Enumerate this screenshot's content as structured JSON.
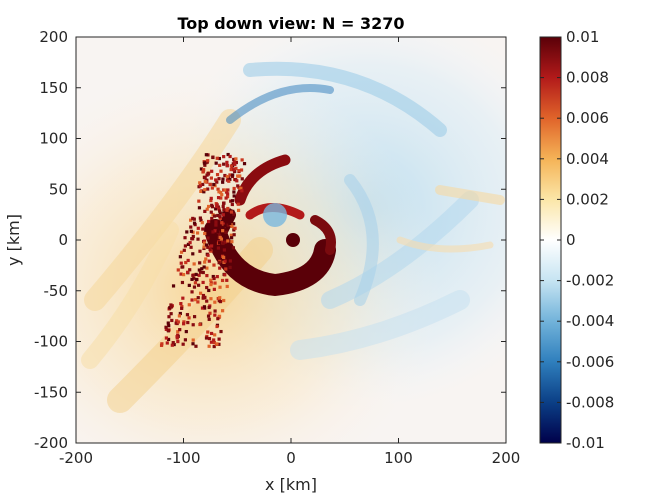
{
  "chart_data": {
    "type": "heatmap",
    "title": "Top down view: N = 3270",
    "xlabel": "x [km]",
    "ylabel": "y [km]",
    "xlim": [
      -200,
      200
    ],
    "ylim": [
      -200,
      200
    ],
    "xticks": [
      -200,
      -100,
      0,
      100,
      200
    ],
    "xtick_labels": [
      "-200",
      "-100",
      "0",
      "100",
      "200"
    ],
    "yticks": [
      -200,
      -150,
      -100,
      -50,
      0,
      50,
      100,
      150,
      200
    ],
    "ytick_labels": [
      "-200",
      "-150",
      "-100",
      "-50",
      "0",
      "50",
      "100",
      "150",
      "200"
    ],
    "colorbar": {
      "range": [
        -0.01,
        0.01
      ],
      "ticks": [
        -0.01,
        -0.008,
        -0.006,
        -0.004,
        -0.002,
        0,
        0.002,
        0.004,
        0.006,
        0.008,
        0.01
      ],
      "tick_labels": [
        "-0.01",
        "-0.008",
        "-0.006",
        "-0.004",
        "-0.002",
        "0",
        "0.002",
        "0.004",
        "0.006",
        "0.008",
        "0.01"
      ],
      "colormap": [
        "#00004a",
        "#0b3f86",
        "#2f7fbd",
        "#72b3da",
        "#c6e4f2",
        "#ffffff",
        "#fbe6a8",
        "#f5b357",
        "#e0642a",
        "#b21a1a",
        "#5a0008"
      ]
    },
    "field": {
      "description_units": "km",
      "eyewall_center": [
        -20,
        -10
      ],
      "particle_cluster_extent": {
        "x": [
          -125,
          -40
        ],
        "y": [
          -105,
          85
        ]
      },
      "particle_count_shown": 3270
    }
  }
}
